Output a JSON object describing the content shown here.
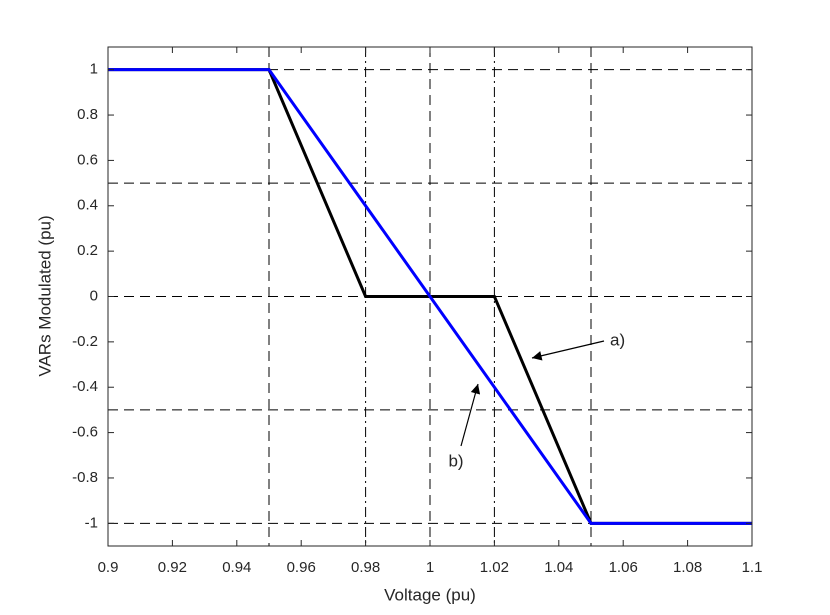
{
  "chart_data": {
    "type": "line",
    "x_label": "Voltage (pu)",
    "y_label": "VARs Modulated (pu)",
    "xlim": [
      0.9,
      1.1
    ],
    "xticks": [
      0.9,
      0.92,
      0.94,
      0.96,
      0.98,
      1,
      1.02,
      1.04,
      1.06,
      1.08,
      1.1
    ],
    "ylim": [
      -1.1,
      1.1
    ],
    "yticks": [
      -1,
      -0.8,
      -0.6,
      -0.4,
      -0.2,
      0,
      0.2,
      0.4,
      0.6,
      0.8,
      1
    ],
    "reference_lines": {
      "horizontal_dashed": [
        1,
        0.5,
        0,
        -0.5,
        -1
      ],
      "vertical_dashed": [
        0.95,
        1,
        1.05
      ],
      "vertical_dashdot": [
        0.98,
        1.02
      ],
      "color": "#000000"
    },
    "series": [
      {
        "color": "#000000",
        "x": [
          0.9,
          0.95,
          0.98,
          1.02,
          1.05,
          1.1
        ],
        "values": [
          1,
          1,
          0,
          0,
          -1,
          -1
        ]
      },
      {
        "color": "#0000ff",
        "x": [
          0.9,
          0.95,
          1.05,
          1.1
        ],
        "values": [
          1,
          1,
          -1,
          -1
        ]
      }
    ],
    "annotations": [
      "a)",
      "b)"
    ]
  }
}
